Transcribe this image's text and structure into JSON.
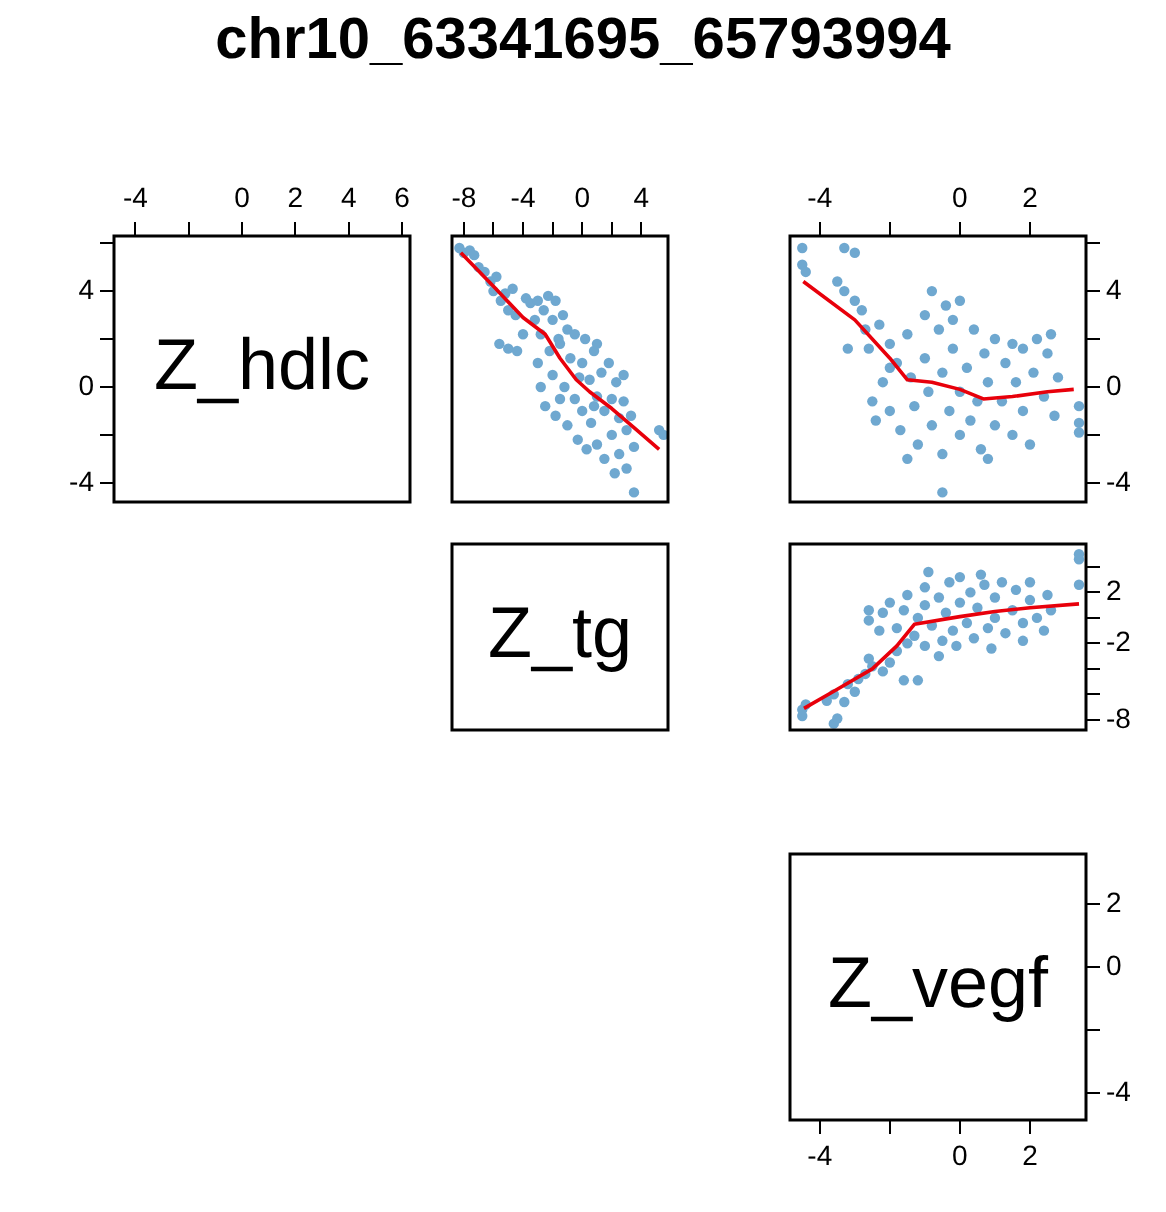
{
  "chart_data": [
    {
      "type": "scatter",
      "title": "chr10_63341695_65793994",
      "annotations": [
        "Z_hdlc"
      ],
      "xlim": [
        -4.8,
        6.3
      ],
      "xticks": [
        -4,
        {
          "value": -2,
          "label": null
        },
        0,
        2,
        4,
        6
      ],
      "ylim": [
        -4.8,
        6.3
      ],
      "yticks": [
        -4,
        {
          "value": -2,
          "label": null
        },
        0,
        {
          "value": 2,
          "label": null
        },
        4,
        {
          "value": 6,
          "label": null
        }
      ]
    },
    {
      "type": "scatter",
      "xlim": [
        -8.8,
        5.8
      ],
      "xticks": [
        -8,
        {
          "value": -6,
          "label": null
        },
        -4,
        {
          "value": -2,
          "label": null
        },
        0,
        {
          "value": 2,
          "label": null
        },
        4
      ],
      "ylim": [
        -4.8,
        6.3
      ],
      "tick_labels": "x",
      "series": [
        {
          "type": "scatter",
          "marker": "circle",
          "color": "#6fa8d0",
          "x": [
            -8.3,
            -8.0,
            -7.6,
            -7.3,
            -7.0,
            -6.6,
            -6.2,
            -6.0,
            -5.8,
            -5.5,
            -5.2,
            -5.0,
            -4.7,
            -4.5,
            -5.6,
            -5.0,
            -4.4,
            -4.0,
            -3.8,
            -3.5,
            -3.2,
            -3.0,
            -2.8,
            -2.6,
            -2.3,
            -2.0,
            -1.8,
            -1.6,
            -1.3,
            -1.0,
            -3.0,
            -2.8,
            -2.5,
            -2.2,
            -2.0,
            -1.8,
            -1.5,
            -1.2,
            -1.0,
            -0.8,
            -0.5,
            -0.5,
            -0.3,
            0.0,
            0.0,
            0.2,
            0.3,
            0.5,
            0.6,
            0.8,
            1.0,
            1.0,
            1.3,
            1.5,
            1.5,
            1.8,
            2.0,
            2.0,
            2.3,
            2.5,
            2.5,
            2.8,
            3.0,
            3.0,
            3.3,
            3.5,
            2.2,
            1.0,
            -0.2,
            0.8,
            3.5,
            5.2,
            5.5,
            2.8,
            -1.5
          ],
          "values": [
            5.8,
            5.6,
            5.7,
            5.5,
            5.0,
            4.8,
            4.4,
            4.0,
            4.6,
            3.6,
            3.9,
            3.2,
            4.1,
            3.0,
            1.8,
            1.6,
            1.5,
            2.2,
            3.7,
            3.5,
            2.8,
            3.6,
            2.2,
            3.2,
            3.8,
            2.8,
            3.6,
            2.0,
            3.0,
            2.4,
            1.0,
            0.0,
            -0.8,
            1.5,
            0.5,
            -1.2,
            1.8,
            0.0,
            -1.6,
            1.2,
            2.2,
            -0.5,
            -2.2,
            1.0,
            -1.0,
            2.0,
            -2.6,
            0.3,
            -1.5,
            1.5,
            -0.4,
            -2.4,
            0.6,
            -1.0,
            -3.0,
            1.0,
            -0.5,
            -2.0,
            0.2,
            -1.3,
            -2.8,
            -0.6,
            -1.8,
            -3.4,
            -1.2,
            -2.5,
            -3.6,
            1.8,
            0.4,
            -0.8,
            -4.4,
            -1.8,
            -2.0,
            0.5,
            -0.5
          ]
        },
        {
          "type": "line",
          "color": "#e8000b",
          "x": [
            -8.2,
            -6.0,
            -4.0,
            -2.5,
            -1.5,
            -0.4,
            0.5,
            2.0,
            3.5,
            5.2
          ],
          "values": [
            5.6,
            4.2,
            2.9,
            2.2,
            1.2,
            0.3,
            -0.2,
            -0.9,
            -1.7,
            -2.6
          ]
        }
      ]
    },
    {
      "type": "scatter",
      "xlim": [
        -4.85,
        3.6
      ],
      "xticks": [
        -4,
        {
          "value": -2,
          "label": null
        },
        0,
        2
      ],
      "ylim": [
        -4.8,
        6.3
      ],
      "yticks": [
        -4,
        {
          "value": -2,
          "label": null
        },
        0,
        {
          "value": 2,
          "label": null
        },
        4,
        {
          "value": 6,
          "label": null
        }
      ],
      "series": [
        {
          "type": "scatter",
          "marker": "circle",
          "color": "#6fa8d0",
          "x": [
            -4.5,
            -4.5,
            -4.4,
            -3.3,
            -3.0,
            -3.5,
            -3.3,
            -3.0,
            -2.8,
            -2.7,
            -3.2,
            -2.6,
            -2.3,
            -2.0,
            -2.5,
            -2.4,
            -2.2,
            -2.0,
            -1.8,
            -1.7,
            -1.5,
            -1.4,
            -1.3,
            -1.2,
            -1.0,
            -1.0,
            -0.9,
            -0.8,
            -0.8,
            -0.6,
            -0.5,
            -0.5,
            -0.4,
            -0.3,
            -0.2,
            0.0,
            0.0,
            0.0,
            0.2,
            0.3,
            0.4,
            0.5,
            0.6,
            0.7,
            0.8,
            1.0,
            1.0,
            1.2,
            1.3,
            1.5,
            1.6,
            1.8,
            1.8,
            2.0,
            2.1,
            2.2,
            2.4,
            2.5,
            2.6,
            2.7,
            2.8,
            3.4,
            3.4,
            3.4,
            -0.5,
            -1.5,
            0.8,
            -2.0,
            1.5,
            -0.2
          ],
          "values": [
            5.8,
            5.1,
            4.8,
            5.8,
            5.6,
            4.4,
            4.0,
            3.6,
            3.2,
            2.4,
            1.6,
            1.6,
            2.6,
            1.8,
            -0.6,
            -1.4,
            0.2,
            -1.0,
            1.0,
            -1.8,
            2.2,
            0.4,
            -0.8,
            -2.4,
            3.0,
            1.2,
            -0.2,
            4.0,
            -1.6,
            2.4,
            0.6,
            -2.8,
            3.4,
            -1.0,
            1.6,
            -0.2,
            -2.0,
            3.6,
            0.8,
            -1.4,
            2.4,
            -0.6,
            -2.6,
            1.4,
            0.2,
            -1.6,
            2.0,
            -0.6,
            1.0,
            -2.0,
            0.2,
            1.6,
            -1.0,
            -2.4,
            0.6,
            2.0,
            -0.4,
            1.4,
            2.2,
            -1.2,
            0.4,
            -1.5,
            -1.9,
            -0.8,
            -4.4,
            -3.0,
            -3.0,
            0.8,
            1.8,
            2.8
          ]
        },
        {
          "type": "line",
          "color": "#e8000b",
          "x": [
            -4.47,
            -3.0,
            -2.0,
            -1.5,
            -0.8,
            0.0,
            0.67,
            1.5,
            2.5,
            3.25
          ],
          "values": [
            4.4,
            2.8,
            1.2,
            0.3,
            0.2,
            -0.1,
            -0.5,
            -0.4,
            -0.2,
            -0.1
          ]
        }
      ]
    },
    {
      "type": "other",
      "annotations": [
        "Z_tg"
      ]
    },
    {
      "type": "scatter",
      "xlim": [
        -4.85,
        3.6
      ],
      "ylim": [
        -8.8,
        5.8
      ],
      "yticks": [
        -8,
        {
          "value": -6,
          "label": null
        },
        {
          "value": -4,
          "label": null
        },
        -2,
        {
          "value": 0,
          "label": null
        },
        2,
        {
          "value": 4,
          "label": null
        }
      ],
      "tick_labels": "y",
      "series": [
        {
          "type": "scatter",
          "marker": "circle",
          "color": "#6fa8d0",
          "x": [
            -4.5,
            -4.5,
            -4.4,
            -3.6,
            -3.5,
            -3.8,
            -3.6,
            -3.3,
            -3.0,
            -3.2,
            -2.9,
            -2.7,
            -2.5,
            -2.6,
            -2.2,
            -2.0,
            -1.6,
            -1.2,
            -1.8,
            -1.5,
            -0.6,
            -2.6,
            -2.6,
            -2.3,
            -2.2,
            -2.0,
            -1.8,
            -1.6,
            -1.5,
            -1.3,
            -1.2,
            -1.0,
            -1.0,
            -0.8,
            -0.6,
            -0.5,
            -0.4,
            -0.3,
            -0.2,
            0.0,
            0.0,
            0.2,
            0.3,
            0.4,
            0.5,
            0.7,
            0.8,
            1.0,
            1.0,
            1.2,
            1.3,
            1.5,
            1.6,
            1.8,
            2.0,
            2.0,
            2.2,
            2.4,
            2.5,
            2.6,
            -0.9,
            -0.1,
            0.9,
            3.4,
            3.4,
            3.4,
            1.8,
            -1.0,
            0.6
          ],
          "values": [
            -7.7,
            -7.2,
            -6.8,
            -8.3,
            -7.9,
            -6.5,
            -6.0,
            -6.6,
            -5.8,
            -5.2,
            -4.8,
            -4.4,
            -3.8,
            -3.2,
            -4.2,
            -3.5,
            -4.9,
            -4.9,
            -2.6,
            -2.0,
            -3.0,
            -0.2,
            0.6,
            -1.0,
            0.4,
            1.2,
            -0.8,
            0.6,
            1.8,
            -1.4,
            0.0,
            1.0,
            2.4,
            -0.6,
            1.6,
            -1.8,
            0.4,
            2.8,
            -1.0,
            1.2,
            3.2,
            -0.4,
            2.0,
            -1.6,
            0.8,
            2.6,
            -0.8,
            1.6,
            0.0,
            2.8,
            -1.2,
            0.6,
            2.2,
            -0.4,
            1.4,
            2.8,
            0.0,
            -1.0,
            1.8,
            0.6,
            3.6,
            -2.2,
            -2.4,
            5.0,
            4.6,
            2.6,
            -1.8,
            -2.2,
            3.4
          ]
        },
        {
          "type": "line",
          "color": "#e8000b",
          "x": [
            -4.45,
            -3.5,
            -2.5,
            -1.8,
            -1.3,
            0.0,
            1.0,
            2.0,
            3.4
          ],
          "values": [
            -7.1,
            -5.6,
            -4.0,
            -2.2,
            -0.5,
            0.1,
            0.5,
            0.8,
            1.1
          ]
        }
      ]
    },
    {
      "type": "scatter",
      "annotations": [
        "Z_vegf"
      ],
      "xlim": [
        -4.85,
        3.6
      ],
      "xticks": [
        -4,
        {
          "value": -2,
          "label": null
        },
        0,
        2
      ],
      "ylim": [
        -4.85,
        3.6
      ],
      "yticks": [
        -4,
        {
          "value": -2,
          "label": null
        },
        0,
        2
      ]
    }
  ]
}
